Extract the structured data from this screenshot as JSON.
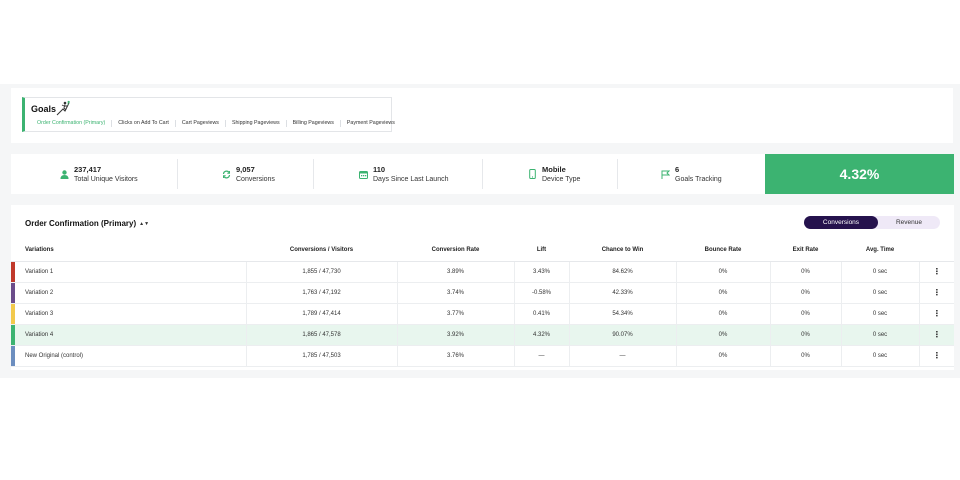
{
  "goals": {
    "title": "Goals",
    "tabs": [
      {
        "label": "Order Confirmation (Primary)",
        "active": true
      },
      {
        "label": "Clicks on Add To Cart",
        "active": false
      },
      {
        "label": "Cart Pageviews",
        "active": false
      },
      {
        "label": "Shipping Pageviews",
        "active": false
      },
      {
        "label": "Billing Pageviews",
        "active": false
      },
      {
        "label": "Payment Pageviews",
        "active": false
      }
    ]
  },
  "stats": [
    {
      "value": "237,417",
      "label": "Total Unique Visitors",
      "icon": "user-icon"
    },
    {
      "value": "9,057",
      "label": "Conversions",
      "icon": "refresh-icon"
    },
    {
      "value": "110",
      "label": "Days Since Last Launch",
      "icon": "calendar-icon"
    },
    {
      "value": "Mobile",
      "label": "Device Type",
      "icon": "mobile-icon"
    },
    {
      "value": "6",
      "label": "Goals Tracking",
      "icon": "flag-icon"
    }
  ],
  "headline_metric": "4.32%",
  "results": {
    "goal_selector": "Order Confirmation (Primary)",
    "toggle": {
      "active": "Conversions",
      "inactive": "Revenue"
    },
    "columns": [
      "Variations",
      "Conversions / Visitors",
      "Conversion Rate",
      "Lift",
      "Chance to Win",
      "Bounce Rate",
      "Exit Rate",
      "Avg. Time"
    ],
    "rows": [
      {
        "name": "Variation 1",
        "conv": "1,855 / 47,730",
        "rate": "3.89%",
        "lift": "3.43%",
        "chance": "84.62%",
        "bounce": "0%",
        "exit": "0%",
        "time": "0 sec",
        "color": "#c0392b"
      },
      {
        "name": "Variation 2",
        "conv": "1,763 / 47,192",
        "rate": "3.74%",
        "lift": "-0.58%",
        "chance": "42.33%",
        "bounce": "0%",
        "exit": "0%",
        "time": "0 sec",
        "color": "#6b4c8a"
      },
      {
        "name": "Variation 3",
        "conv": "1,789 / 47,414",
        "rate": "3.77%",
        "lift": "0.41%",
        "chance": "54.34%",
        "bounce": "0%",
        "exit": "0%",
        "time": "0 sec",
        "color": "#f2c94c"
      },
      {
        "name": "Variation 4",
        "conv": "1,865 / 47,578",
        "rate": "3.92%",
        "lift": "4.32%",
        "chance": "90.07%",
        "bounce": "0%",
        "exit": "0%",
        "time": "0 sec",
        "color": "#3cb371"
      },
      {
        "name": "New Original (control)",
        "conv": "1,785 / 47,503",
        "rate": "3.76%",
        "lift": "—",
        "chance": "—",
        "bounce": "0%",
        "exit": "0%",
        "time": "0 sec",
        "color": "#6c8ebf"
      }
    ],
    "row_menu_glyph": "⋮"
  }
}
